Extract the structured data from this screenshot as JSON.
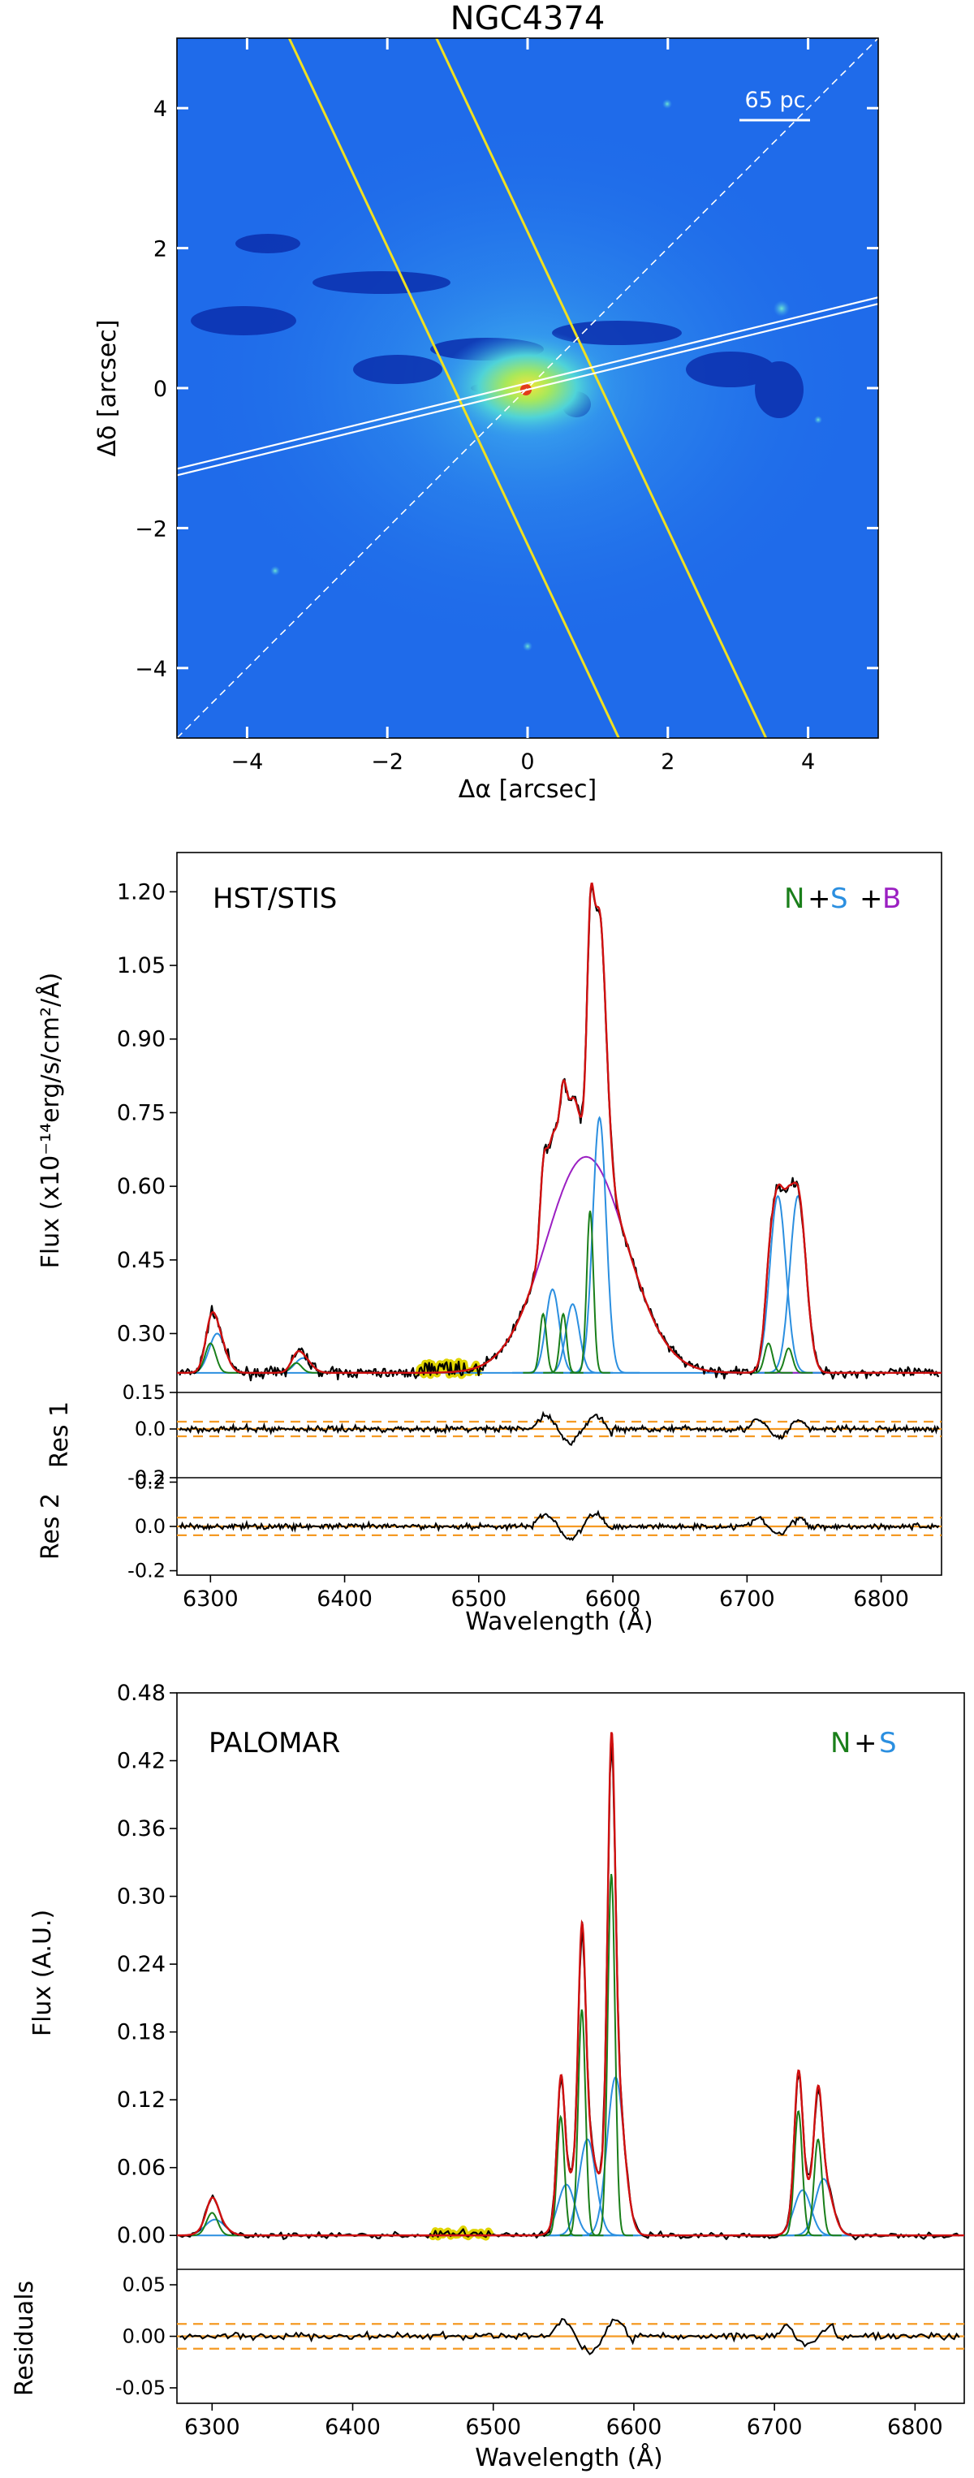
{
  "colors": {
    "narrow": "#1a7f1a",
    "shifted": "#2b8fe0",
    "broad": "#9b1fc2",
    "total_fit": "#d01010",
    "data": "#000000",
    "masked": "#e0d400",
    "residual_lines": "#f59a23",
    "slit": "#f0e020",
    "pa_line": "#ffffff",
    "image_background": "#1f6bea"
  },
  "chart_data": [
    {
      "type": "image",
      "title": "NGC4374",
      "xlabel": "Δα [arcsec]",
      "ylabel": "Δδ [arcsec]",
      "xlim": [
        -5,
        5
      ],
      "ylim": [
        -5,
        5
      ],
      "xticks": [
        "−4",
        "−2",
        "0",
        "2",
        "4"
      ],
      "yticks": [
        "−4",
        "−2",
        "0",
        "2",
        "4"
      ],
      "scalebar_label": "65 pc",
      "overlays": [
        {
          "kind": "slit_edge",
          "color": "yellow",
          "from": [
            -3.4,
            5
          ],
          "to": [
            1.3,
            -5
          ]
        },
        {
          "kind": "slit_edge",
          "color": "yellow",
          "from": [
            -1.3,
            5
          ],
          "to": [
            3.4,
            -5
          ]
        },
        {
          "kind": "double_line",
          "color": "white",
          "from": [
            -5,
            -1.2
          ],
          "to": [
            5,
            1.25
          ]
        },
        {
          "kind": "dashed_line",
          "color": "white",
          "from": [
            -5,
            -5
          ],
          "to": [
            5,
            5
          ]
        }
      ]
    },
    {
      "type": "line",
      "title": "HST/STIS",
      "legend": [
        "N",
        "S",
        "B"
      ],
      "xlabel": "Wavelength (Å)",
      "ylabel": "Flux (x10⁻¹⁴erg/s/cm²/Å)",
      "xlim": [
        6275,
        6845
      ],
      "ylim": [
        0.18,
        1.28
      ],
      "xticks": [
        6300,
        6400,
        6500,
        6600,
        6700,
        6800
      ],
      "yticks": [
        "0.30",
        "0.45",
        "0.60",
        "0.75",
        "0.90",
        "1.05",
        "1.20"
      ],
      "baseline": 0.22,
      "masked_region": [
        6455,
        6500
      ],
      "components": {
        "narrow": [
          {
            "center": 6300,
            "amp": 0.06,
            "sigma": 4
          },
          {
            "center": 6364,
            "amp": 0.02,
            "sigma": 4
          },
          {
            "center": 6548,
            "amp": 0.12,
            "sigma": 2.5
          },
          {
            "center": 6563,
            "amp": 0.12,
            "sigma": 2.5
          },
          {
            "center": 6583,
            "amp": 0.33,
            "sigma": 2.5
          },
          {
            "center": 6716,
            "amp": 0.06,
            "sigma": 3
          },
          {
            "center": 6731,
            "amp": 0.05,
            "sigma": 3
          }
        ],
        "shifted": [
          {
            "center": 6305,
            "amp": 0.08,
            "sigma": 6
          },
          {
            "center": 6369,
            "amp": 0.03,
            "sigma": 6
          },
          {
            "center": 6555,
            "amp": 0.17,
            "sigma": 5
          },
          {
            "center": 6570,
            "amp": 0.14,
            "sigma": 5
          },
          {
            "center": 6590,
            "amp": 0.52,
            "sigma": 5
          },
          {
            "center": 6723,
            "amp": 0.36,
            "sigma": 6
          },
          {
            "center": 6738,
            "amp": 0.36,
            "sigma": 6
          }
        ],
        "broad": [
          {
            "center": 6580,
            "amp": 0.44,
            "sigma": 30
          }
        ]
      },
      "residual_panels": [
        {
          "label": "Res 1",
          "ylim": [
            -0.2,
            0.15
          ],
          "yticks": [
            "0.15",
            "0.0",
            "-0.2"
          ],
          "dashed_levels": [
            0.03,
            -0.03
          ]
        },
        {
          "label": "Res 2",
          "ylim": [
            -0.22,
            0.22
          ],
          "yticks": [
            "0.2",
            "0.0",
            "-0.2"
          ],
          "dashed_levels": [
            0.04,
            -0.04
          ]
        }
      ]
    },
    {
      "type": "line",
      "title": "PALOMAR",
      "legend": [
        "N",
        "S"
      ],
      "xlabel": "Wavelength (Å)",
      "ylabel": "Flux (A.U.)",
      "xlim": [
        6275,
        6835
      ],
      "ylim": [
        -0.03,
        0.48
      ],
      "xticks": [
        6300,
        6400,
        6500,
        6600,
        6700,
        6800
      ],
      "yticks": [
        "0.00",
        "0.06",
        "0.12",
        "0.18",
        "0.24",
        "0.30",
        "0.36",
        "0.42",
        "0.48"
      ],
      "baseline": 0.0,
      "masked_region": [
        6455,
        6500
      ],
      "components": {
        "narrow": [
          {
            "center": 6300,
            "amp": 0.02,
            "sigma": 4
          },
          {
            "center": 6548,
            "amp": 0.105,
            "sigma": 2.6
          },
          {
            "center": 6563,
            "amp": 0.2,
            "sigma": 2.6
          },
          {
            "center": 6584,
            "amp": 0.32,
            "sigma": 2.6
          },
          {
            "center": 6717,
            "amp": 0.11,
            "sigma": 2.8
          },
          {
            "center": 6731,
            "amp": 0.085,
            "sigma": 2.8
          }
        ],
        "shifted": [
          {
            "center": 6302,
            "amp": 0.014,
            "sigma": 7
          },
          {
            "center": 6552,
            "amp": 0.045,
            "sigma": 6
          },
          {
            "center": 6567,
            "amp": 0.085,
            "sigma": 6
          },
          {
            "center": 6587,
            "amp": 0.14,
            "sigma": 6
          },
          {
            "center": 6720,
            "amp": 0.04,
            "sigma": 6
          },
          {
            "center": 6735,
            "amp": 0.05,
            "sigma": 6
          }
        ]
      },
      "residual_panels": [
        {
          "label": "Residuals",
          "ylim": [
            -0.065,
            0.065
          ],
          "yticks": [
            "0.05",
            "0.00",
            "-0.05"
          ],
          "dashed_levels": [
            0.012,
            -0.012
          ]
        }
      ]
    }
  ]
}
